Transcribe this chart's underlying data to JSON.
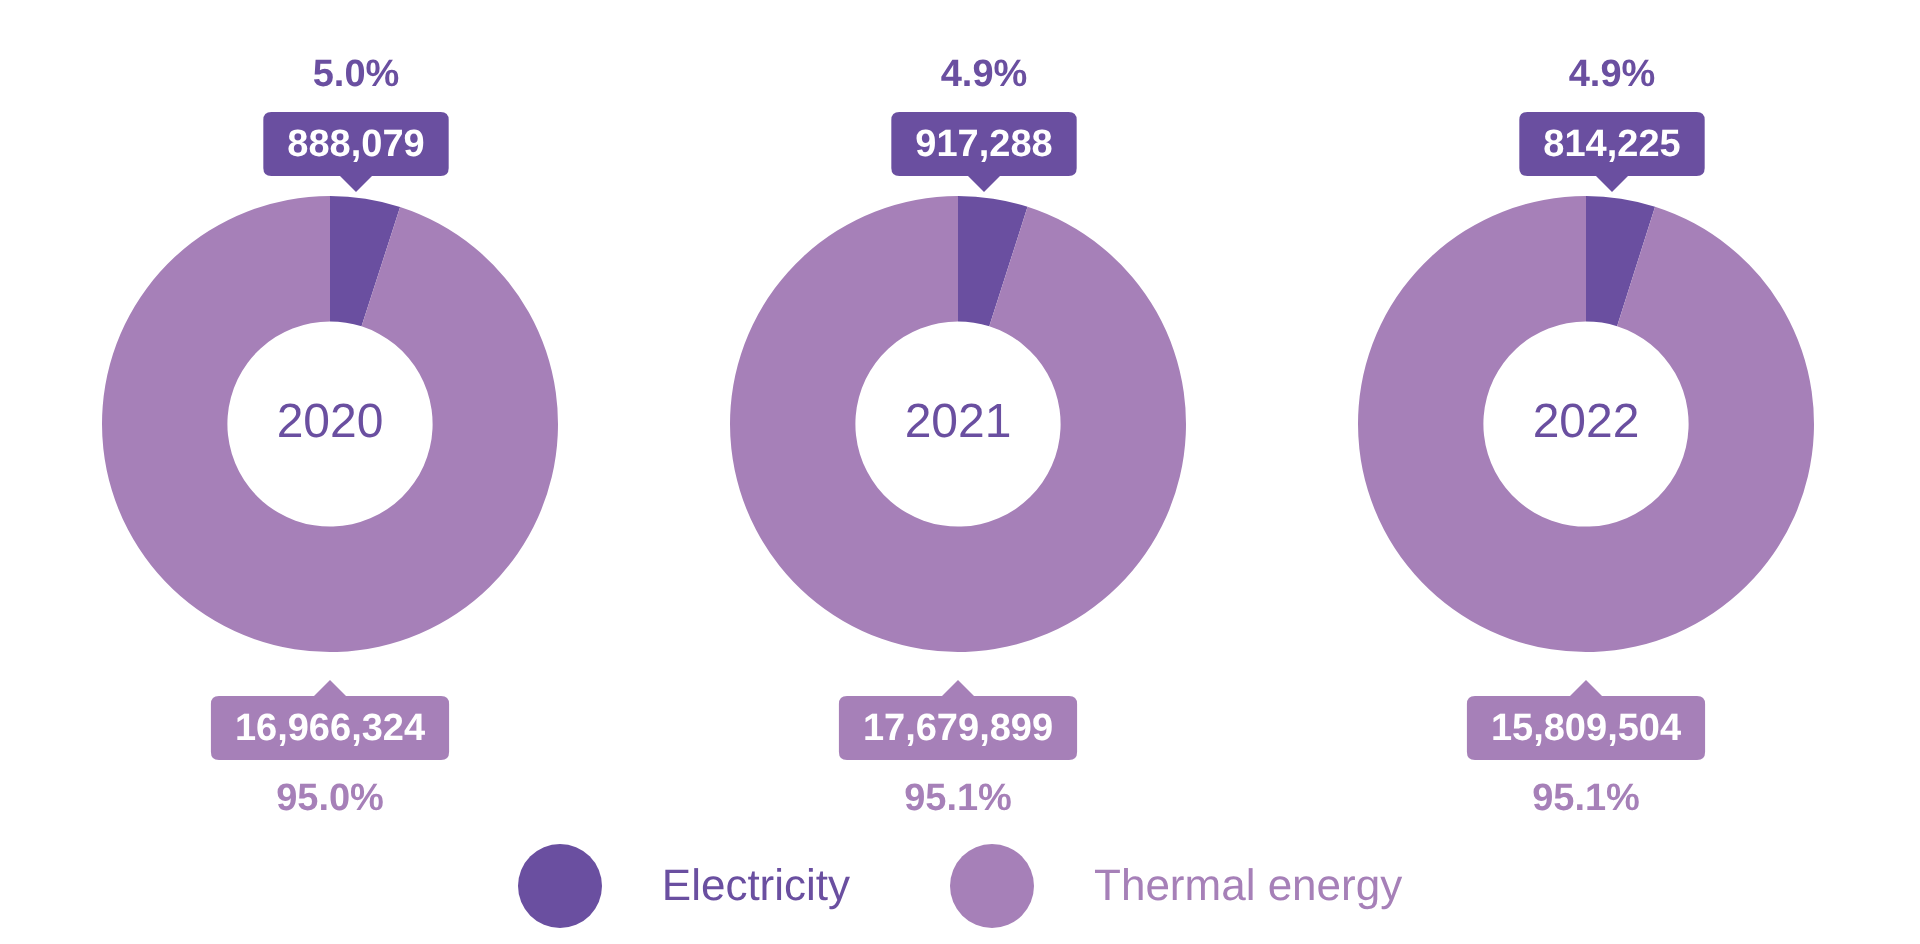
{
  "chart_data": [
    {
      "type": "donut",
      "title": "2020",
      "categories": [
        "Electricity",
        "Thermal energy"
      ],
      "values": [
        888079,
        16966324
      ],
      "colors": [
        "#6a4fa0",
        "#a680b8"
      ],
      "value_labels": [
        "888,079",
        "16,966,324"
      ],
      "annotations": [
        "5.0%",
        "95.0%"
      ],
      "legend": "bottom"
    },
    {
      "type": "donut",
      "title": "2021",
      "categories": [
        null,
        null
      ],
      "values": [
        917288,
        17679899
      ],
      "colors": [
        "#6a4fa0",
        "#a680b8"
      ],
      "value_labels": [
        "917,288",
        "17,679,899"
      ],
      "annotations": [
        "4.9%",
        "95.1%"
      ]
    },
    {
      "type": "donut",
      "title": "2022",
      "categories": [
        null,
        null
      ],
      "values": [
        814225,
        15809504
      ],
      "colors": [
        "#6a4fa0",
        "#a680b8"
      ],
      "value_labels": [
        "814,225",
        "15,809,504"
      ],
      "annotations": [
        "4.9%",
        "95.1%"
      ]
    }
  ]
}
